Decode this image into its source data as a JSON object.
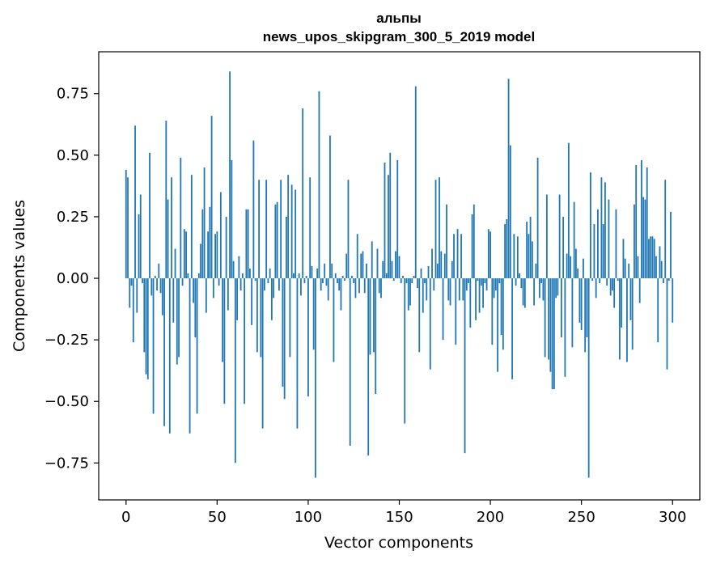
{
  "chart_data": {
    "type": "bar",
    "title": "альпы",
    "subtitle": "news_upos_skipgram_300_5_2019 model",
    "xlabel": "Vector components",
    "ylabel": "Components values",
    "xlim": [
      -15,
      315
    ],
    "ylim": [
      -0.9,
      0.92
    ],
    "xticks": [
      0,
      50,
      100,
      150,
      200,
      250,
      300
    ],
    "xtick_labels": [
      "0",
      "50",
      "100",
      "150",
      "200",
      "250",
      "300"
    ],
    "yticks": [
      -0.75,
      -0.5,
      -0.25,
      0.0,
      0.25,
      0.5,
      0.75
    ],
    "ytick_labels": [
      "−0.75",
      "−0.50",
      "−0.25",
      "0.00",
      "0.25",
      "0.50",
      "0.75"
    ],
    "bar_color": "#1f77b4",
    "grid": false,
    "values": [
      0.44,
      0.41,
      -0.12,
      -0.03,
      -0.26,
      0.62,
      -0.14,
      0.26,
      0.34,
      -0.02,
      -0.3,
      -0.39,
      -0.41,
      0.51,
      -0.07,
      -0.55,
      0.01,
      -0.05,
      0.06,
      -0.06,
      -0.15,
      -0.6,
      0.64,
      0.32,
      -0.63,
      0.41,
      -0.18,
      0.12,
      -0.35,
      -0.32,
      0.49,
      -0.03,
      0.2,
      0.19,
      0.02,
      -0.63,
      0.42,
      -0.1,
      -0.24,
      -0.55,
      0.02,
      0.14,
      0.28,
      0.45,
      -0.14,
      0.19,
      0.29,
      0.66,
      -0.08,
      0.18,
      0.19,
      -0.03,
      0.35,
      -0.34,
      -0.51,
      0.25,
      -0.13,
      0.84,
      0.48,
      0.07,
      -0.75,
      -0.17,
      0.09,
      -0.05,
      0.02,
      -0.51,
      0.28,
      0.28,
      0.04,
      -0.19,
      0.56,
      -0.01,
      -0.3,
      0.4,
      -0.32,
      -0.61,
      -0.05,
      0.4,
      -0.02,
      0.04,
      -0.17,
      -0.08,
      0.3,
      0.31,
      -0.05,
      0.4,
      -0.44,
      -0.49,
      0.25,
      0.42,
      -0.32,
      0.38,
      0.02,
      0.36,
      -0.61,
      0.02,
      -0.07,
      0.69,
      -0.02,
      0.01,
      -0.48,
      0.41,
      0.05,
      -0.29,
      -0.81,
      0.04,
      0.76,
      -0.05,
      -0.02,
      0.06,
      -0.03,
      -0.09,
      0.58,
      0.06,
      -0.34,
      0.02,
      -0.02,
      -0.05,
      -0.13,
      0.01,
      -0.01,
      0.1,
      0.4,
      -0.68,
      0.01,
      -0.02,
      -0.08,
      0.18,
      -0.06,
      0.1,
      0.11,
      -0.06,
      0.06,
      -0.72,
      -0.31,
      0.15,
      -0.3,
      -0.47,
      0.12,
      -0.06,
      -0.08,
      0.07,
      0.47,
      0.02,
      0.42,
      0.51,
      0.07,
      -0.01,
      0.11,
      0.48,
      0.09,
      -0.02,
      0.01,
      -0.59,
      -0.02,
      -0.13,
      -0.11,
      -0.02,
      0.01,
      0.78,
      -0.04,
      -0.3,
      0.04,
      -0.14,
      -0.02,
      -0.09,
      0.05,
      -0.37,
      0.12,
      -0.05,
      0.4,
      0.06,
      0.41,
      0.11,
      -0.25,
      0.1,
      0.3,
      -0.09,
      -0.11,
      0.07,
      0.18,
      -0.27,
      0.2,
      -0.09,
      0.18,
      -0.09,
      -0.71,
      -0.05,
      -0.02,
      -0.2,
      0.26,
      0.3,
      -0.17,
      -0.01,
      -0.14,
      -0.03,
      -0.12,
      -0.02,
      -0.05,
      0.2,
      0.19,
      -0.27,
      -0.08,
      -0.05,
      -0.38,
      -0.02,
      -0.23,
      -0.29,
      0.22,
      0.24,
      0.81,
      0.54,
      -0.41,
      0.18,
      -0.03,
      0.17,
      0.02,
      -0.04,
      -0.11,
      -0.12,
      0.23,
      0.18,
      0.25,
      0.15,
      -0.11,
      0.06,
      0.49,
      -0.08,
      -0.02,
      -0.09,
      -0.32,
      0.34,
      -0.33,
      -0.38,
      -0.45,
      -0.45,
      -0.08,
      -0.07,
      0.34,
      -0.24,
      0.25,
      -0.4,
      0.1,
      0.55,
      0.09,
      -0.28,
      0.31,
      0.12,
      0.04,
      -0.18,
      -0.21,
      0.08,
      -0.3,
      -0.24,
      -0.81,
      0.43,
      -0.01,
      0.22,
      -0.08,
      0.28,
      -0.02,
      0.41,
      0.22,
      0.39,
      -0.03,
      0.32,
      -0.07,
      -0.05,
      -0.12,
      0.28,
      -0.01,
      -0.33,
      -0.2,
      0.16,
      0.08,
      -0.34,
      0.06,
      -0.17,
      -0.29,
      0.3,
      0.46,
      0.09,
      -0.1,
      0.48,
      0.33,
      0.32,
      0.45,
      0.16,
      0.17,
      0.17,
      0.16,
      0.09,
      -0.26,
      0.13,
      0.07,
      -0.02,
      0.4,
      -0.37,
      -0.01,
      0.27,
      -0.18
    ]
  }
}
